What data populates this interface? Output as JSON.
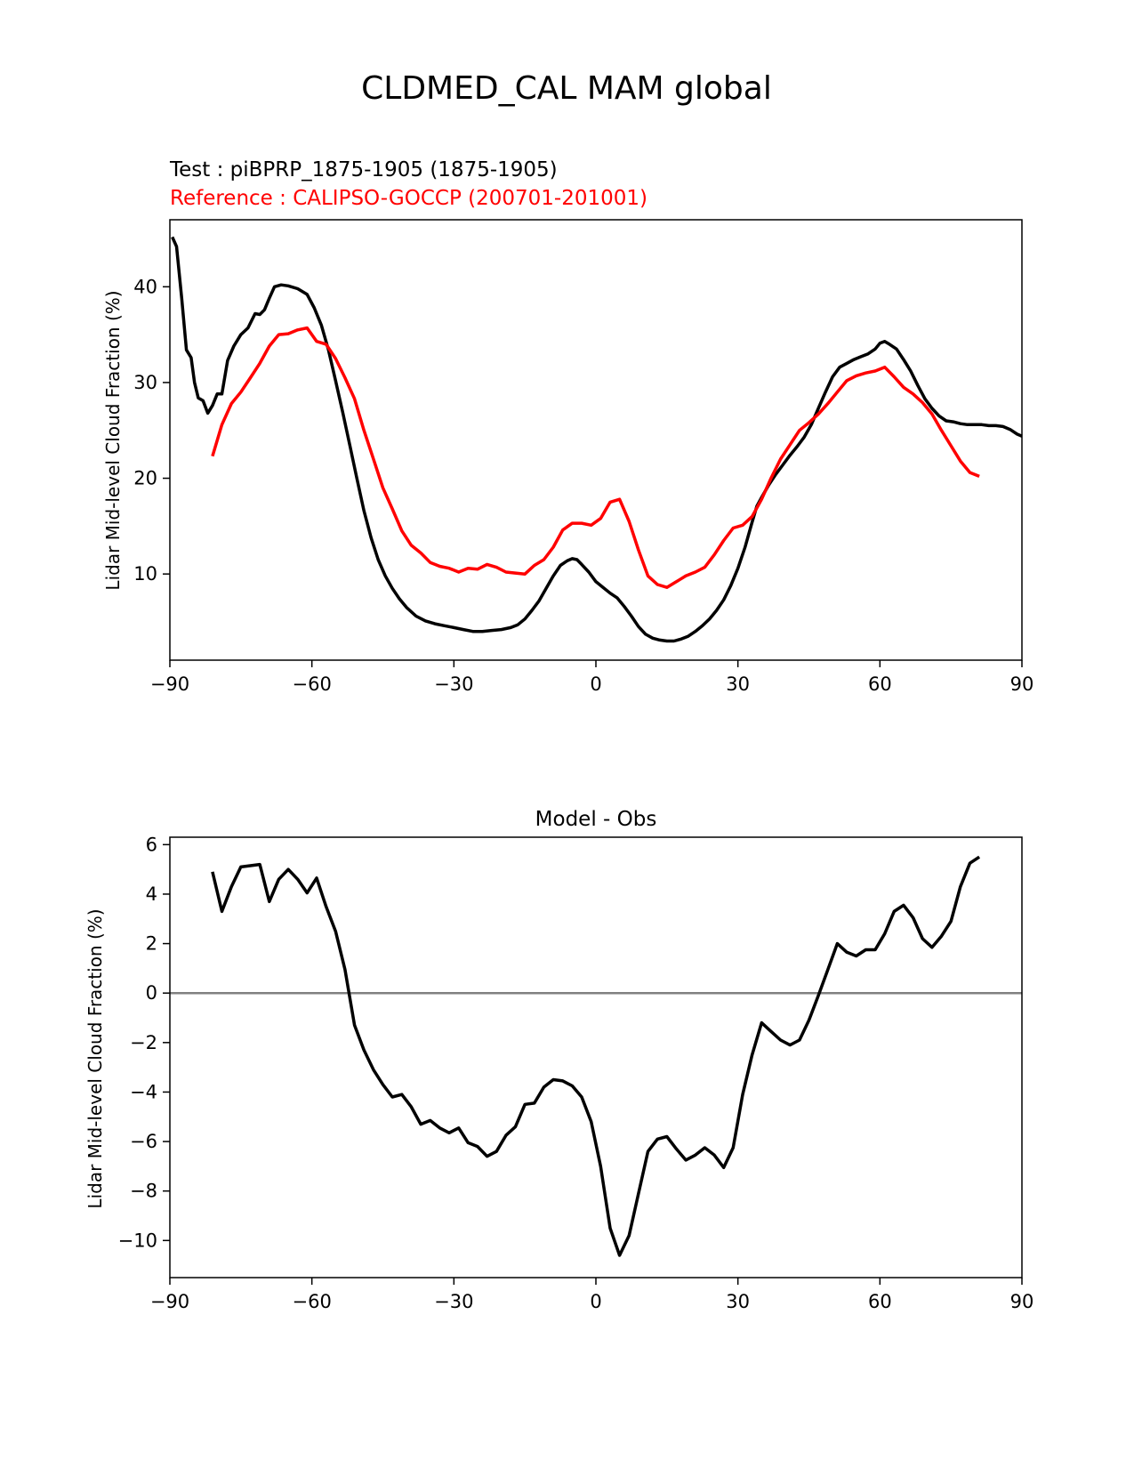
{
  "figure": {
    "suptitle": "CLDMED_CAL MAM global"
  },
  "chart_data": [
    {
      "type": "line",
      "title": "",
      "test_label": "Test : piBPRP_1875-1905 (1875-1905)",
      "reference_label": "Reference : CALIPSO-GOCCP (200701-201001)",
      "xlabel": "",
      "ylabel": "Lidar Mid-level Cloud Fraction (%)",
      "xlim": [
        -90,
        90
      ],
      "ylim": [
        1,
        47
      ],
      "xticks": [
        -90,
        -60,
        -30,
        0,
        30,
        60,
        90
      ],
      "xtick_labels": [
        "−90",
        "−60",
        "−30",
        "0",
        "30",
        "60",
        "90"
      ],
      "yticks": [
        10,
        20,
        30,
        40
      ],
      "ytick_labels": [
        "10",
        "20",
        "30",
        "40"
      ],
      "grid": false,
      "series": [
        {
          "color": "#000000",
          "x": [
            -89.5,
            -88.6,
            -87.5,
            -86.5,
            -85.5,
            -84.8,
            -84.0,
            -83.0,
            -82.0,
            -81.0,
            -80.0,
            -79.0,
            -77.8,
            -76.5,
            -75.0,
            -73.5,
            -72.0,
            -71.0,
            -70.0,
            -69.0,
            -67.9,
            -66.5,
            -65.0,
            -63.0,
            -61.0,
            -59.5,
            -58.0,
            -56.5,
            -55.0,
            -53.5,
            -52.0,
            -50.5,
            -49.0,
            -47.5,
            -46.0,
            -44.5,
            -43.0,
            -41.5,
            -40.0,
            -38.0,
            -36.0,
            -34.0,
            -32.0,
            -30.0,
            -28.0,
            -26.0,
            -24.0,
            -22.0,
            -20.0,
            -18.0,
            -16.5,
            -15.0,
            -13.5,
            -12.0,
            -10.5,
            -9.0,
            -7.5,
            -6.0,
            -5.0,
            -4.0,
            -3.0,
            -1.5,
            0.0,
            1.5,
            3.0,
            4.5,
            6.0,
            7.5,
            9.0,
            10.5,
            12.0,
            13.5,
            15.0,
            16.5,
            18.0,
            19.5,
            21.0,
            22.5,
            24.0,
            25.5,
            27.0,
            28.5,
            30.0,
            31.5,
            33.0,
            34.0,
            35.0,
            36.5,
            38.0,
            39.5,
            41.0,
            42.5,
            44.0,
            45.5,
            47.0,
            48.5,
            50.0,
            51.5,
            53.0,
            54.5,
            56.0,
            57.5,
            59.0,
            60.0,
            61.0,
            62.0,
            63.5,
            65.0,
            66.5,
            68.0,
            69.5,
            71.0,
            72.5,
            74.0,
            75.5,
            77.0,
            78.5,
            80.0,
            81.5,
            83.0,
            84.5,
            86.0,
            87.5,
            89.0,
            90.0
          ],
          "y": [
            45.2,
            44.2,
            38.8,
            33.4,
            32.6,
            30.0,
            28.4,
            28.1,
            26.8,
            27.6,
            28.8,
            28.8,
            32.3,
            33.8,
            35.0,
            35.7,
            37.2,
            37.1,
            37.6,
            38.8,
            40.0,
            40.2,
            40.1,
            39.8,
            39.2,
            37.8,
            36.0,
            33.4,
            30.2,
            26.9,
            23.5,
            20.0,
            16.6,
            13.8,
            11.5,
            9.8,
            8.5,
            7.4,
            6.5,
            5.6,
            5.1,
            4.8,
            4.6,
            4.4,
            4.2,
            4.0,
            4.0,
            4.1,
            4.2,
            4.4,
            4.7,
            5.3,
            6.2,
            7.2,
            8.5,
            9.8,
            10.9,
            11.4,
            11.6,
            11.5,
            11.0,
            10.2,
            9.2,
            8.6,
            8.0,
            7.5,
            6.6,
            5.6,
            4.5,
            3.7,
            3.3,
            3.1,
            3.0,
            3.0,
            3.2,
            3.5,
            4.0,
            4.6,
            5.3,
            6.2,
            7.3,
            8.8,
            10.6,
            12.8,
            15.4,
            17.1,
            18.0,
            19.3,
            20.4,
            21.4,
            22.4,
            23.3,
            24.3,
            25.6,
            27.3,
            29.0,
            30.6,
            31.6,
            32.0,
            32.4,
            32.7,
            33.0,
            33.5,
            34.1,
            34.3,
            34.0,
            33.5,
            32.4,
            31.2,
            29.7,
            28.3,
            27.3,
            26.5,
            26.0,
            25.9,
            25.7,
            25.6,
            25.6,
            25.6,
            25.5,
            25.5,
            25.4,
            25.1,
            24.6,
            24.4
          ]
        },
        {
          "color": "#ff0000",
          "x": [
            -81.0,
            -79.0,
            -77.0,
            -75.0,
            -73.0,
            -71.0,
            -69.0,
            -67.0,
            -65.0,
            -63.0,
            -61.0,
            -59.0,
            -57.0,
            -55.0,
            -53.0,
            -51.0,
            -49.0,
            -47.0,
            -45.0,
            -43.0,
            -41.0,
            -39.0,
            -37.0,
            -35.0,
            -33.0,
            -31.0,
            -29.0,
            -27.0,
            -25.0,
            -23.0,
            -21.0,
            -19.0,
            -17.0,
            -15.0,
            -13.0,
            -11.0,
            -9.0,
            -7.0,
            -5.0,
            -3.0,
            -1.0,
            1.0,
            3.0,
            5.0,
            7.0,
            9.0,
            11.0,
            13.0,
            15.0,
            17.0,
            19.0,
            21.0,
            23.0,
            25.0,
            27.0,
            29.0,
            31.0,
            33.0,
            35.0,
            37.0,
            39.0,
            41.0,
            43.0,
            45.0,
            47.0,
            49.0,
            51.0,
            53.0,
            55.0,
            57.0,
            59.0,
            61.0,
            63.0,
            65.0,
            67.0,
            69.0,
            71.0,
            73.0,
            75.0,
            77.0,
            79.0,
            81.0
          ],
          "y": [
            22.3,
            25.6,
            27.8,
            29.0,
            30.5,
            32.0,
            33.8,
            35.0,
            35.1,
            35.5,
            35.7,
            34.3,
            34.0,
            32.5,
            30.5,
            28.3,
            25.0,
            22.0,
            19.0,
            16.8,
            14.5,
            13.0,
            12.2,
            11.2,
            10.8,
            10.6,
            10.2,
            10.6,
            10.5,
            11.0,
            10.7,
            10.2,
            10.1,
            10.0,
            10.9,
            11.5,
            12.8,
            14.6,
            15.3,
            15.3,
            15.1,
            15.8,
            17.5,
            17.8,
            15.5,
            12.5,
            9.8,
            8.9,
            8.6,
            9.2,
            9.8,
            10.2,
            10.7,
            12.0,
            13.5,
            14.8,
            15.1,
            16.0,
            17.8,
            20.0,
            22.0,
            23.5,
            25.0,
            25.8,
            26.7,
            27.8,
            29.0,
            30.2,
            30.7,
            31.0,
            31.2,
            31.6,
            30.6,
            29.5,
            28.8,
            27.9,
            26.7,
            25.0,
            23.4,
            21.8,
            20.6,
            20.2
          ]
        }
      ]
    },
    {
      "type": "line",
      "title": "Model - Obs",
      "xlabel": "",
      "ylabel": "Lidar Mid-level Cloud Fraction (%)",
      "xlim": [
        -90,
        90
      ],
      "ylim": [
        -11.5,
        6.3
      ],
      "xticks": [
        -90,
        -60,
        -30,
        0,
        30,
        60,
        90
      ],
      "xtick_labels": [
        "−90",
        "−60",
        "−30",
        "0",
        "30",
        "60",
        "90"
      ],
      "yticks": [
        -10,
        -8,
        -6,
        -4,
        -2,
        0,
        2,
        4,
        6
      ],
      "ytick_labels": [
        "−10",
        "−8",
        "−6",
        "−4",
        "−2",
        "0",
        "2",
        "4",
        "6"
      ],
      "zero_line": true,
      "grid": false,
      "series": [
        {
          "color": "#000000",
          "x": [
            -81.0,
            -79.0,
            -77.0,
            -75.0,
            -73.0,
            -71.0,
            -69.0,
            -67.0,
            -65.0,
            -63.0,
            -61.0,
            -59.0,
            -57.0,
            -55.0,
            -53.0,
            -51.0,
            -49.0,
            -47.0,
            -45.0,
            -43.0,
            -41.0,
            -39.0,
            -37.0,
            -35.0,
            -33.0,
            -31.0,
            -29.0,
            -27.0,
            -25.0,
            -23.0,
            -21.0,
            -19.0,
            -17.0,
            -15.0,
            -13.0,
            -11.0,
            -9.0,
            -7.0,
            -5.0,
            -3.0,
            -1.0,
            1.0,
            3.0,
            5.0,
            7.0,
            9.0,
            11.0,
            13.0,
            15.0,
            17.0,
            19.0,
            21.0,
            23.0,
            25.0,
            27.0,
            29.0,
            31.0,
            33.0,
            35.0,
            37.0,
            39.0,
            41.0,
            43.0,
            45.0,
            47.0,
            49.0,
            51.0,
            53.0,
            55.0,
            57.0,
            59.0,
            61.0,
            63.0,
            65.0,
            67.0,
            69.0,
            71.0,
            73.0,
            75.0,
            77.0,
            79.0,
            81.0
          ],
          "y": [
            4.9,
            3.3,
            4.3,
            5.1,
            5.15,
            5.2,
            3.7,
            4.6,
            5.0,
            4.6,
            4.05,
            4.65,
            3.5,
            2.5,
            0.95,
            -1.3,
            -2.3,
            -3.1,
            -3.7,
            -4.2,
            -4.1,
            -4.6,
            -5.3,
            -5.15,
            -5.45,
            -5.65,
            -5.45,
            -6.05,
            -6.2,
            -6.6,
            -6.4,
            -5.75,
            -5.4,
            -4.5,
            -4.45,
            -3.8,
            -3.5,
            -3.55,
            -3.75,
            -4.2,
            -5.2,
            -7.0,
            -9.5,
            -10.6,
            -9.8,
            -8.1,
            -6.4,
            -5.9,
            -5.8,
            -6.3,
            -6.75,
            -6.55,
            -6.25,
            -6.55,
            -7.05,
            -6.25,
            -4.1,
            -2.5,
            -1.2,
            -1.55,
            -1.9,
            -2.1,
            -1.9,
            -1.1,
            -0.1,
            0.95,
            2.0,
            1.65,
            1.5,
            1.75,
            1.75,
            2.4,
            3.3,
            3.55,
            3.05,
            2.2,
            1.85,
            2.3,
            2.9,
            4.3,
            5.25,
            5.5
          ]
        }
      ]
    }
  ]
}
